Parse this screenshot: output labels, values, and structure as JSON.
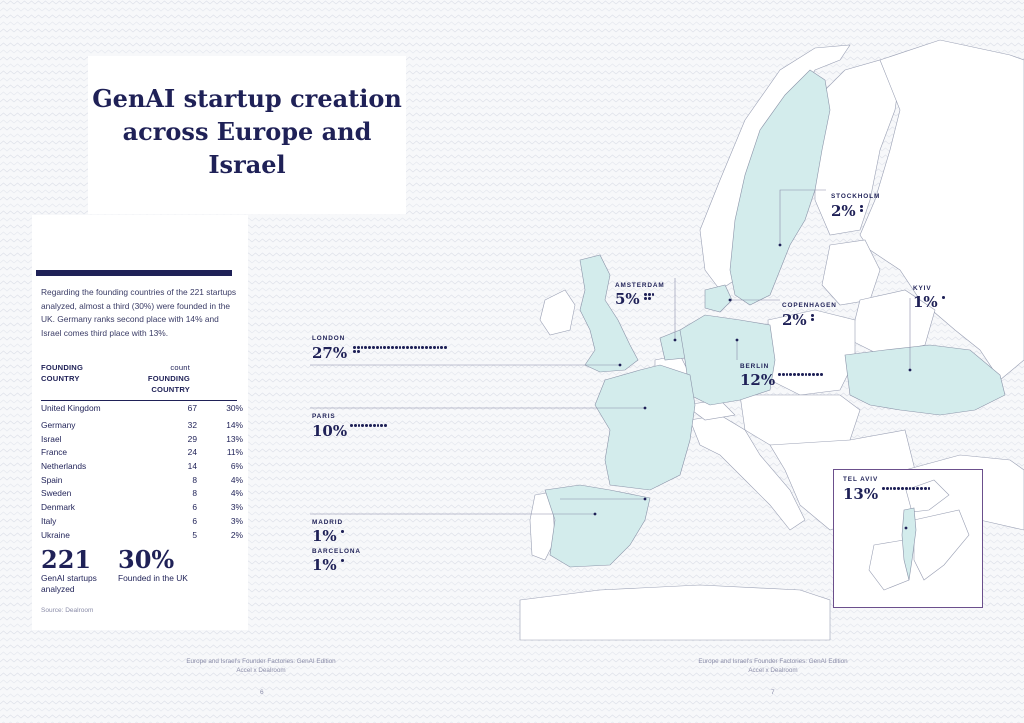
{
  "title": "GenAI startup creation across Europe and Israel",
  "intro": "Regarding the founding countries of the 221 startups analyzed, almost a third (30%) were founded in the UK. Germany ranks second place with 14% and Israel comes third place with 13%.",
  "table": {
    "header_country": "FOUNDING COUNTRY",
    "header_count_top": "count",
    "header_count_bottom": "FOUNDING COUNTRY",
    "rows": [
      {
        "country": "United Kingdom",
        "count": "67",
        "pct": "30%"
      },
      {
        "country": "Germany",
        "count": "32",
        "pct": "14%"
      },
      {
        "country": "Israel",
        "count": "29",
        "pct": "13%"
      },
      {
        "country": "France",
        "count": "24",
        "pct": "11%"
      },
      {
        "country": "Netherlands",
        "count": "14",
        "pct": "6%"
      },
      {
        "country": "Spain",
        "count": "8",
        "pct": "4%"
      },
      {
        "country": "Sweden",
        "count": "8",
        "pct": "4%"
      },
      {
        "country": "Denmark",
        "count": "6",
        "pct": "3%"
      },
      {
        "country": "Italy",
        "count": "6",
        "pct": "3%"
      },
      {
        "country": "Ukraine",
        "count": "5",
        "pct": "2%"
      }
    ]
  },
  "stats": {
    "total": "221",
    "total_caption": "GenAI startups analyzed",
    "uk_share": "30%",
    "uk_caption": "Founded in the UK"
  },
  "source": "Source: Dealroom",
  "map_labels": {
    "stockholm": {
      "city": "STOCKHOLM",
      "pct": "2%",
      "dots": 2
    },
    "kyiv": {
      "city": "KYIV",
      "pct": "1%",
      "dots": 1
    },
    "amsterdam": {
      "city": "AMSTERDAM",
      "pct": "5%",
      "dots": 5
    },
    "copenhagen": {
      "city": "COPENHAGEN",
      "pct": "2%",
      "dots": 2
    },
    "london": {
      "city": "LONDON",
      "pct": "27%",
      "dots": 27
    },
    "berlin": {
      "city": "BERLIN",
      "pct": "12%",
      "dots": 12
    },
    "paris": {
      "city": "PARIS",
      "pct": "10%",
      "dots": 10
    },
    "tel_aviv": {
      "city": "TEL AVIV",
      "pct": "13%",
      "dots": 13
    },
    "madrid": {
      "city": "MADRID",
      "pct": "1%",
      "dots": 1
    },
    "barcelona": {
      "city": "BARCELONA",
      "pct": "1%",
      "dots": 1
    }
  },
  "footer": {
    "left_line1": "Europe and Israel's Founder Factories: GenAI Edition",
    "left_line2": "Accel x Dealroom",
    "left_page": "6",
    "right_line1": "Europe and Israel's Founder Factories: GenAI Edition",
    "right_line2": "Accel x Dealroom",
    "right_page": "7"
  },
  "colors": {
    "navy": "#1f2157",
    "highlight": "#d3ecec",
    "inset_border": "#6b4f8c"
  }
}
